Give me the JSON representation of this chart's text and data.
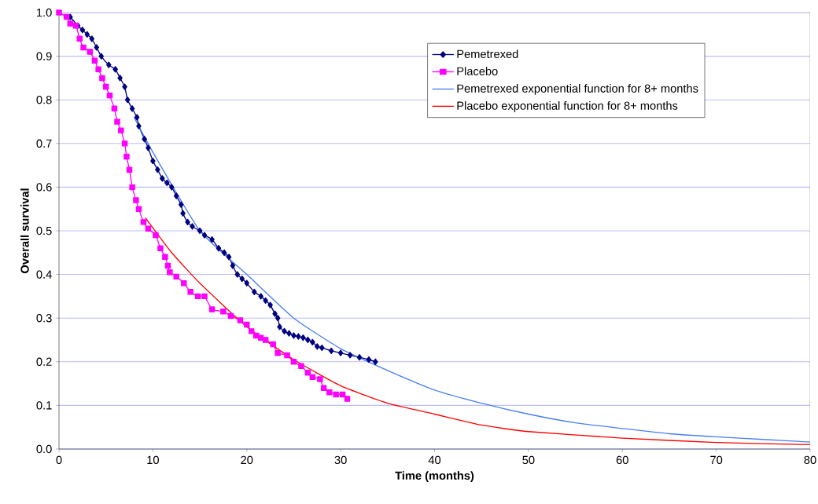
{
  "chart_data": {
    "type": "line",
    "xlabel": "Time (months)",
    "ylabel": "Overall survival",
    "xlim": [
      0,
      80
    ],
    "ylim": [
      0,
      1
    ],
    "xticks": [
      0,
      10,
      20,
      30,
      40,
      50,
      60,
      70,
      80
    ],
    "yticks": [
      {
        "value": 0,
        "label": "0.0"
      },
      {
        "value": 0.1,
        "label": "0.1"
      },
      {
        "value": 0.2,
        "label": "0.2"
      },
      {
        "value": 0.3,
        "label": "0.3"
      },
      {
        "value": 0.4,
        "label": "0.4"
      },
      {
        "value": 0.5,
        "label": "0.5"
      },
      {
        "value": 0.6,
        "label": "0.6"
      },
      {
        "value": 0.7,
        "label": "0.7"
      },
      {
        "value": 0.8,
        "label": "0.8"
      },
      {
        "value": 0.9,
        "label": "0.9"
      },
      {
        "value": 1,
        "label": "1.0"
      }
    ],
    "grid": "y",
    "legend": "top right",
    "line_style": "solid",
    "series": [
      {
        "name": "Pemetrexed",
        "color": "#000080",
        "marker": "diamond",
        "x": [
          1.2,
          2,
          2.5,
          3,
          3.5,
          4,
          4.5,
          5.3,
          6,
          6.5,
          7,
          7.3,
          7.8,
          8.3,
          8.5,
          9.1,
          9.5,
          10,
          10.5,
          11,
          11.5,
          12,
          12.5,
          13,
          13.2,
          13.7,
          14.2,
          15,
          15.5,
          16.3,
          17,
          17.6,
          18.1,
          18.5,
          19,
          19.5,
          20,
          20.8,
          21.5,
          22,
          22.5,
          23,
          23.3,
          23.5,
          24,
          24.5,
          25,
          25.5,
          26,
          26.5,
          27,
          27.5,
          28,
          29,
          30,
          31,
          32,
          33,
          33.7
        ],
        "values": [
          0.99,
          0.97,
          0.96,
          0.95,
          0.94,
          0.92,
          0.9,
          0.88,
          0.87,
          0.85,
          0.83,
          0.8,
          0.78,
          0.76,
          0.74,
          0.71,
          0.69,
          0.66,
          0.64,
          0.62,
          0.61,
          0.6,
          0.58,
          0.56,
          0.54,
          0.52,
          0.51,
          0.5,
          0.49,
          0.48,
          0.46,
          0.45,
          0.44,
          0.42,
          0.4,
          0.39,
          0.38,
          0.36,
          0.35,
          0.34,
          0.33,
          0.31,
          0.3,
          0.28,
          0.27,
          0.265,
          0.26,
          0.258,
          0.255,
          0.25,
          0.245,
          0.235,
          0.232,
          0.225,
          0.22,
          0.215,
          0.21,
          0.205,
          0.2
        ]
      },
      {
        "name": "Placebo",
        "color": "#ff00ff",
        "marker": "square",
        "x": [
          0,
          0.8,
          1.2,
          1.8,
          2.2,
          2.6,
          3.3,
          3.8,
          4.2,
          4.6,
          5,
          5.4,
          5.9,
          6.2,
          6.6,
          7,
          7.2,
          7.5,
          7.8,
          8.2,
          8.5,
          9,
          9.5,
          10.3,
          10.8,
          11.3,
          11.6,
          11.8,
          12.5,
          13.3,
          14,
          14.8,
          15.5,
          16.3,
          17.5,
          18.3,
          19.3,
          20,
          20.5,
          21,
          21.5,
          22,
          22.8,
          23.3,
          24.3,
          25,
          25.8,
          26.5,
          27,
          27.8,
          28.2,
          28.8,
          29.5,
          30.2,
          30.7
        ],
        "values": [
          1.0,
          0.99,
          0.975,
          0.97,
          0.94,
          0.92,
          0.91,
          0.89,
          0.87,
          0.85,
          0.83,
          0.81,
          0.78,
          0.75,
          0.73,
          0.7,
          0.67,
          0.64,
          0.6,
          0.57,
          0.55,
          0.52,
          0.505,
          0.49,
          0.46,
          0.44,
          0.42,
          0.405,
          0.395,
          0.38,
          0.36,
          0.35,
          0.35,
          0.32,
          0.315,
          0.305,
          0.295,
          0.285,
          0.27,
          0.26,
          0.255,
          0.25,
          0.24,
          0.22,
          0.215,
          0.2,
          0.19,
          0.175,
          0.165,
          0.16,
          0.14,
          0.13,
          0.125,
          0.125,
          0.115
        ]
      },
      {
        "name": "Pemetrexed exponential function for 8+ months",
        "color": "#4a7ff0",
        "marker": "none",
        "x": [
          8,
          10,
          15,
          20,
          25,
          30,
          35,
          40,
          45,
          50,
          55,
          60,
          65,
          70,
          75,
          80
        ],
        "values": [
          0.76,
          0.68,
          0.5,
          0.4,
          0.3,
          0.23,
          0.18,
          0.135,
          0.105,
          0.08,
          0.06,
          0.047,
          0.035,
          0.028,
          0.022,
          0.016
        ]
      },
      {
        "name": "Placebo exponential function for 8+ months",
        "color": "#ff0000",
        "marker": "none",
        "x": [
          9.2,
          12,
          15,
          20,
          25,
          30,
          35,
          40,
          45,
          50,
          60,
          70,
          80
        ],
        "values": [
          0.53,
          0.45,
          0.38,
          0.28,
          0.205,
          0.145,
          0.105,
          0.08,
          0.055,
          0.04,
          0.025,
          0.015,
          0.01
        ]
      }
    ]
  }
}
